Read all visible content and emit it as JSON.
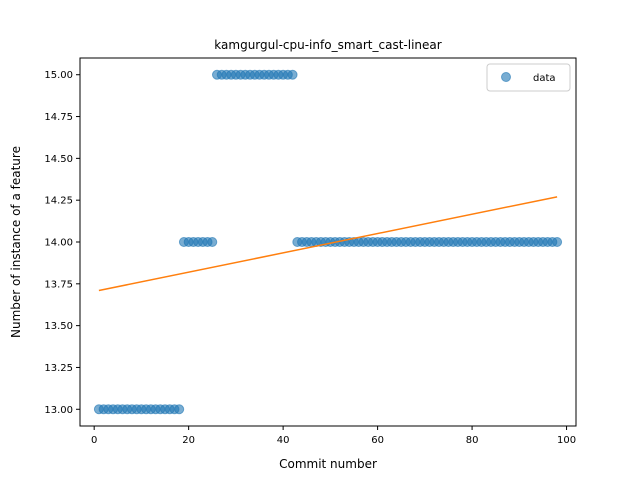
{
  "chart_data": {
    "type": "scatter",
    "title": "kamgurgul-cpu-info_smart_cast-linear",
    "xlabel": "Commit number",
    "ylabel": "Number of instance of a feature",
    "xlim": [
      -3,
      102
    ],
    "ylim": [
      12.9,
      15.1
    ],
    "xticks": [
      0,
      20,
      40,
      60,
      80,
      100
    ],
    "yticks": [
      13.0,
      13.25,
      13.5,
      13.75,
      14.0,
      14.25,
      14.5,
      14.75,
      15.0
    ],
    "xtick_labels": [
      "0",
      "20",
      "40",
      "60",
      "80",
      "100"
    ],
    "ytick_labels": [
      "13.00",
      "13.25",
      "13.50",
      "13.75",
      "14.00",
      "14.25",
      "14.50",
      "14.75",
      "15.00"
    ],
    "grid": false,
    "legend_position": "top-right",
    "colors": {
      "scatter": "#1f77b4",
      "fit": "#ff7f0e"
    },
    "series": [
      {
        "name": "data",
        "kind": "scatter",
        "segments": [
          {
            "x_from": 1,
            "x_to": 18,
            "y": 13.0
          },
          {
            "x_from": 19,
            "x_to": 25,
            "y": 14.0
          },
          {
            "x_from": 26,
            "x_to": 42,
            "y": 15.0
          },
          {
            "x_from": 43,
            "x_to": 98,
            "y": 14.0
          }
        ]
      },
      {
        "kind": "line",
        "x": [
          1,
          98
        ],
        "y": [
          13.71,
          14.27
        ]
      }
    ]
  }
}
